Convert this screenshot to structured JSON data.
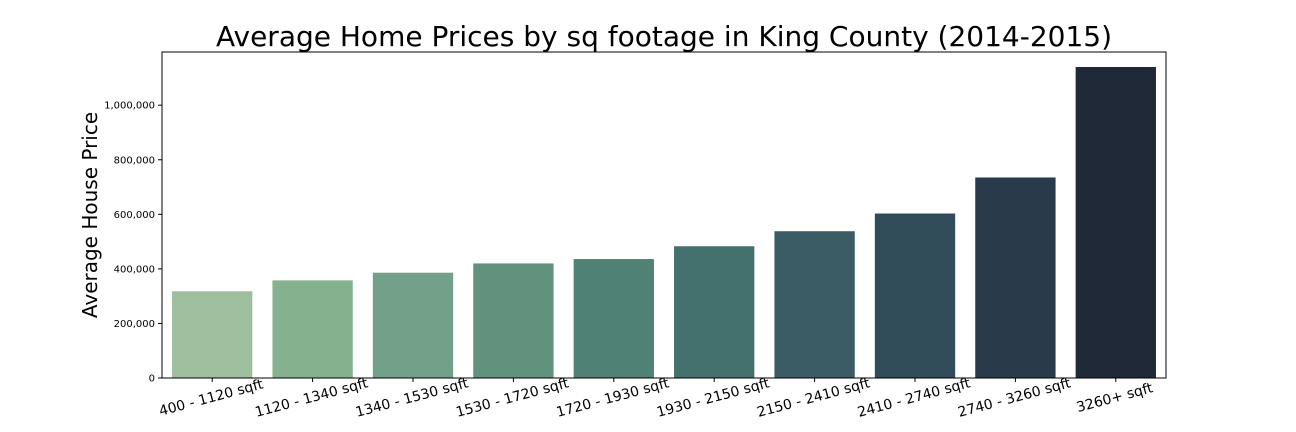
{
  "chart_data": {
    "type": "bar",
    "title": "Average Home Prices by sq footage in King County (2014-2015)",
    "xlabel": "",
    "ylabel": "Average House Price",
    "categories": [
      "400 - 1120 sqft",
      "1120 - 1340 sqft",
      "1340 - 1530 sqft",
      "1530 - 1720 sqft",
      "1720 - 1930 sqft",
      "1930 - 2150 sqft",
      "2150 - 2410 sqft",
      "2410 - 2740 sqft",
      "2740 - 3260 sqft",
      "3260+ sqft"
    ],
    "values": [
      318000,
      358000,
      386000,
      420000,
      436000,
      483000,
      538000,
      603000,
      735000,
      1140000
    ],
    "colors": [
      "#9dbf9e",
      "#86b18e",
      "#73a088",
      "#61927e",
      "#4f8174",
      "#44706e",
      "#3b5c65",
      "#314c59",
      "#293a4b",
      "#1f2937"
    ],
    "ylim": [
      0,
      1200000
    ],
    "yticks": [
      0,
      200000,
      400000,
      600000,
      800000,
      1000000
    ],
    "ytick_labels": [
      "0",
      "200,000",
      "400,000",
      "600,000",
      "800,000",
      "1,000,000"
    ],
    "grid": false,
    "legend": "none"
  }
}
